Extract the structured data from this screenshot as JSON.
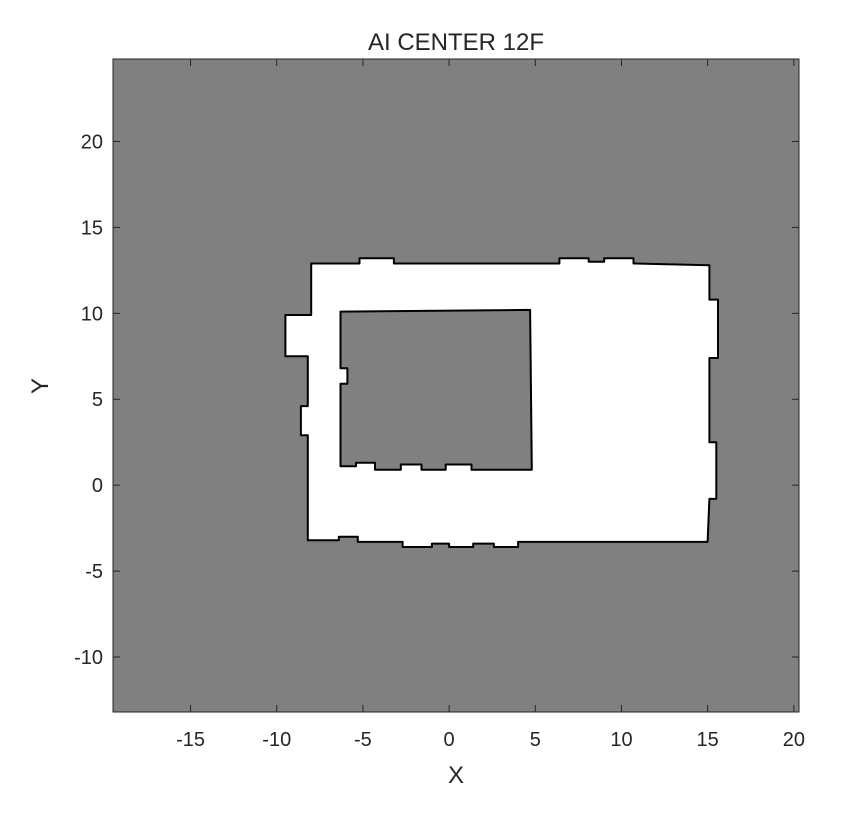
{
  "chart_data": {
    "type": "area",
    "title": "AI CENTER 12F",
    "xlabel": "X",
    "ylabel": "Y",
    "xlim": [
      -19.5,
      20.3
    ],
    "ylim": [
      -13.2,
      24.8
    ],
    "xticks": [
      -15,
      -10,
      -5,
      0,
      5,
      10,
      15,
      20
    ],
    "yticks": [
      -10,
      -5,
      0,
      5,
      10,
      15,
      20
    ],
    "grid": false,
    "legend": "none",
    "colors": {
      "background": "#808080",
      "free_space": "#ffffff",
      "wall": "#000000"
    },
    "regions": [
      {
        "name": "outer boundary",
        "fill": "free",
        "points": [
          [
            -8.0,
            12.9
          ],
          [
            -5.2,
            12.9
          ],
          [
            -5.2,
            13.2
          ],
          [
            -3.2,
            13.2
          ],
          [
            -3.2,
            12.9
          ],
          [
            6.4,
            12.9
          ],
          [
            6.4,
            13.2
          ],
          [
            8.1,
            13.2
          ],
          [
            8.1,
            13.0
          ],
          [
            9.0,
            13.0
          ],
          [
            9.0,
            13.2
          ],
          [
            10.7,
            13.2
          ],
          [
            10.7,
            12.9
          ],
          [
            15.1,
            12.8
          ],
          [
            15.1,
            10.8
          ],
          [
            15.6,
            10.8
          ],
          [
            15.6,
            7.4
          ],
          [
            15.1,
            7.4
          ],
          [
            15.1,
            2.5
          ],
          [
            15.5,
            2.5
          ],
          [
            15.5,
            -0.8
          ],
          [
            15.1,
            -0.8
          ],
          [
            15.0,
            -3.3
          ],
          [
            4.0,
            -3.3
          ],
          [
            4.0,
            -3.6
          ],
          [
            2.6,
            -3.6
          ],
          [
            2.6,
            -3.4
          ],
          [
            1.4,
            -3.4
          ],
          [
            1.4,
            -3.6
          ],
          [
            0.0,
            -3.6
          ],
          [
            0.0,
            -3.4
          ],
          [
            -1.0,
            -3.4
          ],
          [
            -1.0,
            -3.6
          ],
          [
            -2.7,
            -3.6
          ],
          [
            -2.7,
            -3.3
          ],
          [
            -5.3,
            -3.3
          ],
          [
            -5.3,
            -3.0
          ],
          [
            -6.4,
            -3.0
          ],
          [
            -6.4,
            -3.2
          ],
          [
            -8.2,
            -3.2
          ],
          [
            -8.2,
            2.9
          ],
          [
            -8.6,
            2.9
          ],
          [
            -8.6,
            4.6
          ],
          [
            -8.2,
            4.6
          ],
          [
            -8.2,
            7.5
          ],
          [
            -9.5,
            7.5
          ],
          [
            -9.5,
            9.9
          ],
          [
            -8.0,
            9.9
          ]
        ]
      },
      {
        "name": "inner block",
        "fill": "occupied",
        "points": [
          [
            -6.3,
            10.1
          ],
          [
            4.7,
            10.2
          ],
          [
            4.8,
            0.9
          ],
          [
            1.3,
            0.9
          ],
          [
            1.3,
            1.2
          ],
          [
            -0.2,
            1.2
          ],
          [
            -0.2,
            0.9
          ],
          [
            -1.6,
            0.9
          ],
          [
            -1.6,
            1.2
          ],
          [
            -2.8,
            1.2
          ],
          [
            -2.8,
            0.9
          ],
          [
            -4.3,
            0.9
          ],
          [
            -4.3,
            1.3
          ],
          [
            -5.4,
            1.3
          ],
          [
            -5.4,
            1.1
          ],
          [
            -6.3,
            1.1
          ],
          [
            -6.3,
            5.9
          ],
          [
            -5.9,
            5.9
          ],
          [
            -5.9,
            6.8
          ],
          [
            -6.3,
            6.8
          ]
        ]
      }
    ]
  }
}
